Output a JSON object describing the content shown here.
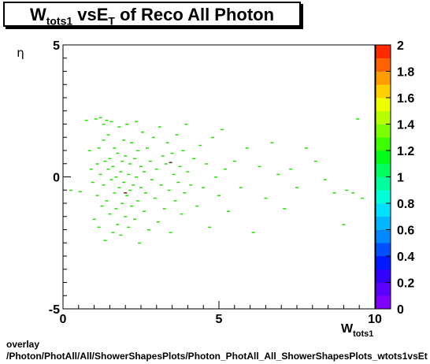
{
  "title": {
    "main_w": "W",
    "sub_w": "tots1",
    "mid": " vsE",
    "sub_e": "T",
    "tail": " of Reco All Photon"
  },
  "footer": {
    "line1": "overlay",
    "line2": "/Photon/PhotAll/All/ShowerShapesPlots/Photon_PhotAll_All_ShowerShapesPlots_wtots1vsEt"
  },
  "chart_data": {
    "type": "heatmap",
    "xlabel_main": "W",
    "xlabel_sub": "tots1",
    "ylabel": "η",
    "xlim": [
      0,
      10
    ],
    "ylim": [
      -5,
      5
    ],
    "x_ticks": [
      0,
      5,
      10
    ],
    "y_ticks": [
      -5,
      0,
      5
    ],
    "colorbar": {
      "range": [
        0,
        2
      ],
      "tick_labels": [
        "0",
        "0.2",
        "0.4",
        "0.6",
        "0.8",
        "1",
        "1.2",
        "1.4",
        "1.6",
        "1.8",
        "2"
      ],
      "colors": [
        "#7f00ff",
        "#5b00ff",
        "#3300ff",
        "#0019ff",
        "#0050ff",
        "#0088ff",
        "#00b6ff",
        "#00e0ff",
        "#00ffd8",
        "#00ff9c",
        "#00ff5a",
        "#00ff14",
        "#3cff00",
        "#7cff00",
        "#b8ff00",
        "#eeff00",
        "#ffd000",
        "#ff9c00",
        "#ff6400",
        "#ff2a00"
      ]
    },
    "points": [
      [
        0.25,
        -0.5
      ],
      [
        0.55,
        -0.55
      ],
      [
        0.75,
        2.15
      ],
      [
        0.85,
        1.0
      ],
      [
        0.9,
        0.3
      ],
      [
        0.95,
        -0.2
      ],
      [
        1.0,
        -1.6
      ],
      [
        1.05,
        2.2
      ],
      [
        1.1,
        0.5
      ],
      [
        1.1,
        -0.7
      ],
      [
        1.15,
        1.1
      ],
      [
        1.15,
        -1.9
      ],
      [
        1.2,
        2.25
      ],
      [
        1.2,
        0.1
      ],
      [
        1.25,
        -1.1
      ],
      [
        1.3,
        1.4
      ],
      [
        1.3,
        -0.3
      ],
      [
        1.3,
        2.0
      ],
      [
        1.35,
        0.6
      ],
      [
        1.35,
        -2.4
      ],
      [
        1.4,
        2.15
      ],
      [
        1.4,
        -0.9
      ],
      [
        1.45,
        0.3
      ],
      [
        1.45,
        1.6
      ],
      [
        1.5,
        -1.4
      ],
      [
        1.5,
        0.7
      ],
      [
        1.55,
        2.1
      ],
      [
        1.55,
        -0.1
      ],
      [
        1.6,
        -2.1
      ],
      [
        1.6,
        0.4
      ],
      [
        1.65,
        1.1
      ],
      [
        1.65,
        -0.6
      ],
      [
        1.7,
        0.0
      ],
      [
        1.7,
        -1.2
      ],
      [
        1.75,
        0.9
      ],
      [
        1.75,
        -1.8
      ],
      [
        1.8,
        1.9
      ],
      [
        1.8,
        -0.4
      ],
      [
        1.85,
        0.2
      ],
      [
        1.85,
        -2.2
      ],
      [
        1.9,
        0.6
      ],
      [
        1.9,
        -1.0
      ],
      [
        1.95,
        1.4
      ],
      [
        1.95,
        -0.2
      ],
      [
        2.0,
        -1.5
      ],
      [
        2.0,
        0.8
      ],
      [
        2.05,
        2.0
      ],
      [
        2.05,
        -0.7
      ],
      [
        2.1,
        0.1
      ],
      [
        2.1,
        -1.9
      ],
      [
        2.15,
        0.5
      ],
      [
        2.15,
        -0.5
      ],
      [
        2.2,
        1.3
      ],
      [
        2.2,
        -1.1
      ],
      [
        2.25,
        -0.3
      ],
      [
        2.3,
        0.7
      ],
      [
        2.3,
        -1.6
      ],
      [
        2.35,
        2.1
      ],
      [
        2.35,
        0.0
      ],
      [
        2.4,
        -0.9
      ],
      [
        2.4,
        1.0
      ],
      [
        2.45,
        -2.5
      ],
      [
        2.5,
        0.4
      ],
      [
        2.5,
        -0.4
      ],
      [
        2.55,
        1.7
      ],
      [
        2.6,
        -1.3
      ],
      [
        2.6,
        0.2
      ],
      [
        2.65,
        -0.6
      ],
      [
        2.7,
        1.1
      ],
      [
        2.75,
        -2.0
      ],
      [
        2.8,
        0.6
      ],
      [
        2.85,
        -0.1
      ],
      [
        2.9,
        1.5
      ],
      [
        2.95,
        -0.8
      ],
      [
        3.0,
        0.3
      ],
      [
        3.05,
        -1.7
      ],
      [
        3.1,
        1.9
      ],
      [
        3.15,
        -0.3
      ],
      [
        3.2,
        0.8
      ],
      [
        3.25,
        -1.2
      ],
      [
        3.3,
        0.5
      ],
      [
        3.35,
        1.3
      ],
      [
        3.4,
        -0.5
      ],
      [
        3.45,
        -2.1
      ],
      [
        3.5,
        0.9
      ],
      [
        3.55,
        0.1
      ],
      [
        3.6,
        -0.9
      ],
      [
        3.65,
        1.6
      ],
      [
        3.7,
        -0.2
      ],
      [
        3.75,
        0.4
      ],
      [
        3.8,
        -1.4
      ],
      [
        3.85,
        1.0
      ],
      [
        3.9,
        -0.6
      ],
      [
        3.95,
        2.0
      ],
      [
        4.0,
        0.2
      ],
      [
        4.1,
        -0.3
      ],
      [
        4.2,
        0.7
      ],
      [
        4.3,
        -1.1
      ],
      [
        4.4,
        1.2
      ],
      [
        4.5,
        -0.4
      ],
      [
        4.6,
        0.5
      ],
      [
        4.7,
        -1.9
      ],
      [
        4.8,
        1.5
      ],
      [
        4.9,
        0.0
      ],
      [
        5.0,
        -0.7
      ],
      [
        5.1,
        1.8
      ],
      [
        5.2,
        0.3
      ],
      [
        5.3,
        -1.3
      ],
      [
        5.5,
        0.6
      ],
      [
        5.7,
        -0.4
      ],
      [
        5.9,
        1.1
      ],
      [
        6.1,
        -2.1
      ],
      [
        6.3,
        0.4
      ],
      [
        6.5,
        -0.8
      ],
      [
        6.7,
        1.3
      ],
      [
        6.9,
        0.1
      ],
      [
        7.1,
        -1.2
      ],
      [
        7.3,
        0.3
      ],
      [
        7.5,
        -0.4
      ],
      [
        7.8,
        1.1
      ],
      [
        8.1,
        0.6
      ],
      [
        8.4,
        -0.1
      ],
      [
        8.7,
        -0.6
      ],
      [
        9.0,
        -1.8
      ],
      [
        9.1,
        -0.5
      ],
      [
        9.3,
        -0.6
      ],
      [
        9.45,
        2.2
      ],
      [
        9.6,
        -0.8
      ]
    ],
    "highlight_points": [
      [
        3.45,
        0.55
      ],
      [
        2.0,
        -0.6
      ]
    ]
  }
}
